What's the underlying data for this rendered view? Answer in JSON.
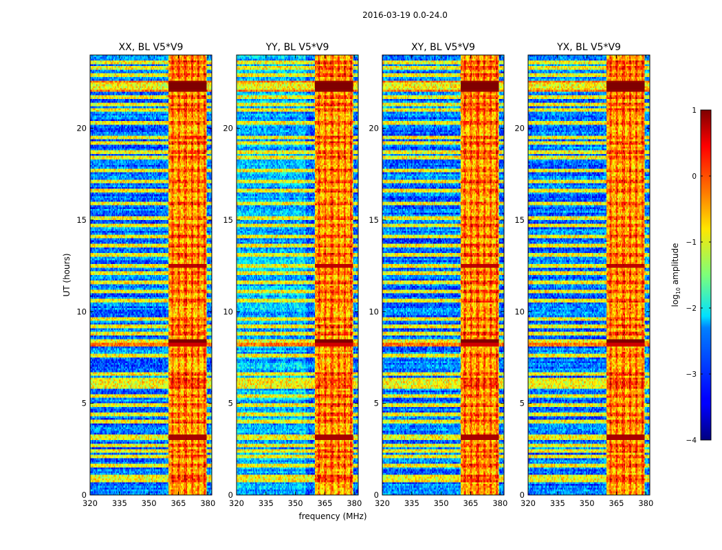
{
  "chart_data": {
    "type": "heatmap",
    "suptitle": "2016-03-19 0.0-24.0",
    "xlabel": "frequency (MHz)",
    "ylabel": "UT (hours)",
    "xlim": [
      320,
      382
    ],
    "ylim": [
      0,
      24
    ],
    "xticks": [
      "320",
      "335",
      "350",
      "365",
      "380"
    ],
    "yticks": [
      "0",
      "5",
      "10",
      "15",
      "20"
    ],
    "colorbar": {
      "label_prefix": "log",
      "label_sub": "10",
      "label_suffix": " amplitude",
      "range": [
        -4,
        1
      ],
      "ticks": [
        "1",
        "0",
        "−1",
        "−2",
        "−3",
        "−4"
      ],
      "colormap": "jet"
    },
    "panels": [
      {
        "title": "XX, BL V5*V9",
        "variant": 0
      },
      {
        "title": "YY, BL V5*V9",
        "variant": 1
      },
      {
        "title": "XY, BL V5*V9",
        "variant": 2
      },
      {
        "title": "YX, BL V5*V9",
        "variant": 3
      }
    ],
    "structure": {
      "quiet_band_mhz": [
        320,
        360
      ],
      "quiet_level": -2.8,
      "active_band_mhz": [
        360,
        379.5
      ],
      "active_level": -0.6,
      "strong_rfi_hours": [
        {
          "t0": 22.0,
          "t1": 22.6,
          "level": 0.9
        },
        {
          "t0": 8.1,
          "t1": 8.5,
          "level": 0.6
        },
        {
          "t0": 3.0,
          "t1": 3.3,
          "level": 0.3
        },
        {
          "t0": 12.4,
          "t1": 12.6,
          "level": 0.2
        }
      ],
      "rfi_lines_hours": [
        0.8,
        1.0,
        1.6,
        2.1,
        2.4,
        2.7,
        3.1,
        3.2,
        4.0,
        4.4,
        4.9,
        5.4,
        5.9,
        6.1,
        6.3,
        6.6,
        7.6,
        8.4,
        8.8,
        9.2,
        9.6,
        10.6,
        11.1,
        11.6,
        12.1,
        12.5,
        13.1,
        13.6,
        14.1,
        14.7,
        15.1,
        15.9,
        16.6,
        17.1,
        17.7,
        18.4,
        18.7,
        19.2,
        19.5,
        20.3,
        21.0,
        21.3,
        21.7,
        22.2,
        22.4,
        22.9,
        23.3,
        23.6
      ]
    }
  }
}
